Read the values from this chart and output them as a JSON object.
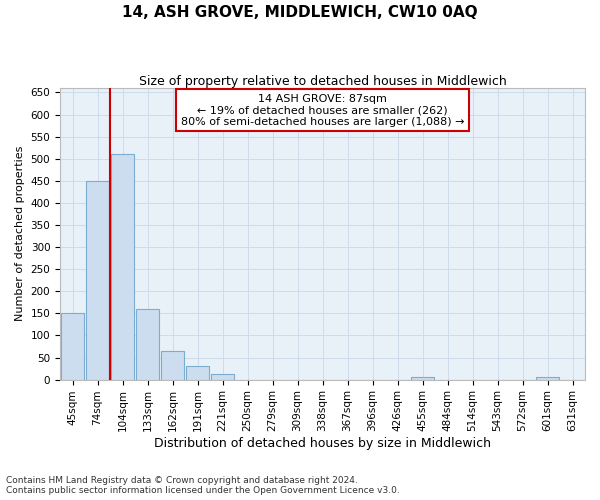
{
  "title": "14, ASH GROVE, MIDDLEWICH, CW10 0AQ",
  "subtitle": "Size of property relative to detached houses in Middlewich",
  "xlabel": "Distribution of detached houses by size in Middlewich",
  "ylabel": "Number of detached properties",
  "footnote1": "Contains HM Land Registry data © Crown copyright and database right 2024.",
  "footnote2": "Contains public sector information licensed under the Open Government Licence v3.0.",
  "categories": [
    "45sqm",
    "74sqm",
    "104sqm",
    "133sqm",
    "162sqm",
    "191sqm",
    "221sqm",
    "250sqm",
    "279sqm",
    "309sqm",
    "338sqm",
    "367sqm",
    "396sqm",
    "426sqm",
    "455sqm",
    "484sqm",
    "514sqm",
    "543sqm",
    "572sqm",
    "601sqm",
    "631sqm"
  ],
  "values": [
    150,
    450,
    510,
    160,
    65,
    30,
    12,
    0,
    0,
    0,
    0,
    0,
    0,
    0,
    5,
    0,
    0,
    0,
    0,
    5,
    0
  ],
  "bar_color": "#ccddf0",
  "bar_edge_color": "#7aadd0",
  "grid_color": "#c8d8e8",
  "background_color": "#e8f0f8",
  "vline_x": 1.5,
  "vline_color": "#cc0000",
  "annotation_text": "14 ASH GROVE: 87sqm\n← 19% of detached houses are smaller (262)\n80% of semi-detached houses are larger (1,088) →",
  "annotation_box_color": "#cc0000",
  "ylim": [
    0,
    660
  ],
  "yticks": [
    0,
    50,
    100,
    150,
    200,
    250,
    300,
    350,
    400,
    450,
    500,
    550,
    600,
    650
  ],
  "title_fontsize": 11,
  "subtitle_fontsize": 9,
  "tick_fontsize": 7.5,
  "ylabel_fontsize": 8,
  "xlabel_fontsize": 9,
  "footnote_fontsize": 6.5,
  "annotation_fontsize": 8
}
